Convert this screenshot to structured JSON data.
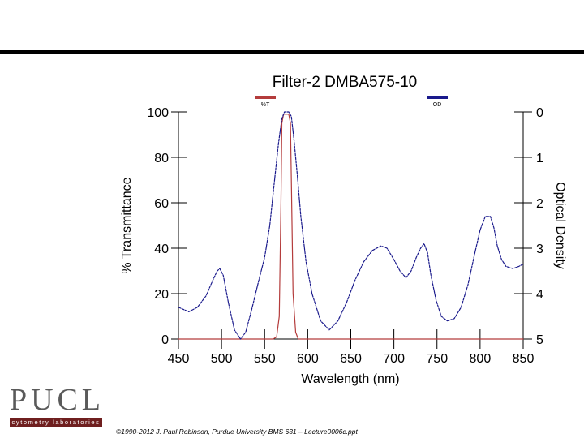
{
  "footer": "©1990-2012 J. Paul Robinson, Purdue University BMS 631 – Lecture0006c.ppt",
  "logo": {
    "letters": [
      "P",
      "U",
      "C",
      "L"
    ],
    "subtitle": "cytometry laboratories"
  },
  "colors": {
    "transmittance": "#b43c3c",
    "optical_density": "#1a1a8c",
    "axis": "#000000"
  },
  "chart_data": {
    "type": "line",
    "title": "Filter-2 DMBA575-10",
    "xlabel": "Wavelength (nm)",
    "ylabel": "% Transmittance",
    "y2label": "Optical Density",
    "xlim": [
      450,
      850
    ],
    "ylim": [
      0,
      100
    ],
    "y2lim": [
      5,
      0
    ],
    "x_ticks": [
      450,
      500,
      550,
      600,
      650,
      700,
      750,
      800,
      850
    ],
    "y_ticks": [
      100,
      80,
      60,
      40,
      20,
      0
    ],
    "y2_ticks": [
      0,
      1,
      2,
      3,
      4,
      5
    ],
    "legend": {
      "placement": "top",
      "entries": [
        "%T",
        "OD"
      ]
    },
    "series": [
      {
        "name": "%T",
        "axis": "left",
        "x": [
          450,
          560,
          564,
          567,
          569,
          570,
          572,
          575,
          578,
          580,
          581,
          583,
          586,
          589,
          590,
          850
        ],
        "y": [
          0,
          0,
          1,
          10,
          60,
          95,
          99,
          99,
          99,
          95,
          70,
          20,
          3,
          0,
          0,
          0
        ]
      },
      {
        "name": "OD",
        "axis": "right",
        "x": [
          450,
          462,
          472,
          482,
          490,
          495,
          498,
          502,
          508,
          515,
          522,
          528,
          535,
          542,
          550,
          556,
          561,
          566,
          570,
          573,
          575,
          576,
          578,
          581,
          584,
          588,
          592,
          598,
          605,
          615,
          625,
          635,
          645,
          655,
          665,
          675,
          685,
          692,
          700,
          707,
          714,
          720,
          726,
          731,
          735,
          739,
          743,
          749,
          755,
          762,
          770,
          778,
          786,
          794,
          800,
          806,
          812,
          816,
          820,
          825,
          830,
          838,
          845,
          850
        ],
        "y": [
          4.3,
          4.4,
          4.3,
          4.05,
          3.7,
          3.5,
          3.45,
          3.6,
          4.2,
          4.8,
          5.0,
          4.85,
          4.35,
          3.8,
          3.2,
          2.5,
          1.6,
          0.7,
          0.15,
          0.0,
          0.0,
          0.0,
          0.0,
          0.1,
          0.6,
          1.4,
          2.3,
          3.3,
          4.0,
          4.6,
          4.8,
          4.6,
          4.2,
          3.7,
          3.3,
          3.05,
          2.95,
          3.0,
          3.25,
          3.5,
          3.65,
          3.5,
          3.2,
          3.0,
          2.9,
          3.1,
          3.6,
          4.15,
          4.5,
          4.6,
          4.55,
          4.3,
          3.8,
          3.1,
          2.6,
          2.3,
          2.3,
          2.55,
          2.95,
          3.25,
          3.4,
          3.45,
          3.4,
          3.35
        ]
      }
    ]
  }
}
